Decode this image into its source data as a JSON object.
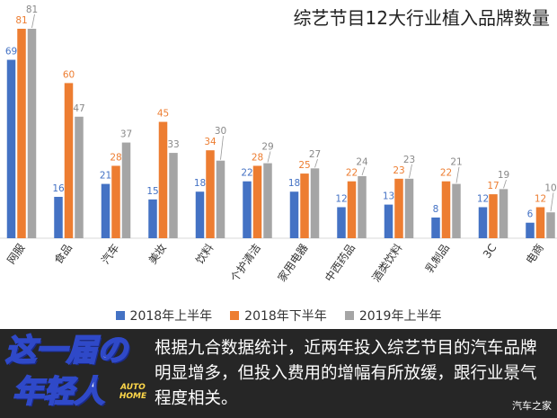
{
  "chart_data": {
    "type": "bar",
    "title": "综艺节目12大行业植入品牌数量",
    "categories": [
      "网服",
      "食品",
      "汽车",
      "美妆",
      "饮料",
      "个护清洁",
      "家用电器",
      "中西药品",
      "酒类饮料",
      "乳制品",
      "3C",
      "电商"
    ],
    "series": [
      {
        "name": "2018年上半年",
        "color": "#4472c4",
        "values": [
          69,
          16,
          21,
          15,
          18,
          22,
          18,
          12,
          13,
          8,
          12,
          6
        ]
      },
      {
        "name": "2018年下半年",
        "color": "#ed7d31",
        "values": [
          81,
          60,
          28,
          45,
          34,
          28,
          25,
          22,
          23,
          22,
          17,
          12
        ]
      },
      {
        "name": "2019年上半年",
        "color": "#a5a5a5",
        "values": [
          81,
          47,
          37,
          33,
          30,
          29,
          27,
          24,
          23,
          21,
          19,
          10
        ]
      }
    ],
    "ylim": [
      0,
      81
    ],
    "grid": false,
    "legend": "bottom"
  },
  "banner": {
    "logo_line1": "这一届の",
    "logo_line2": "年轻人",
    "logo_badge": "AUTO HOME",
    "caption": "根据九合数据统计，近两年投入综艺节目的汽车品牌明显增多，但投入费用的增幅有所放缓，跟行业景气程度相关。",
    "watermark": "汽车之家"
  }
}
